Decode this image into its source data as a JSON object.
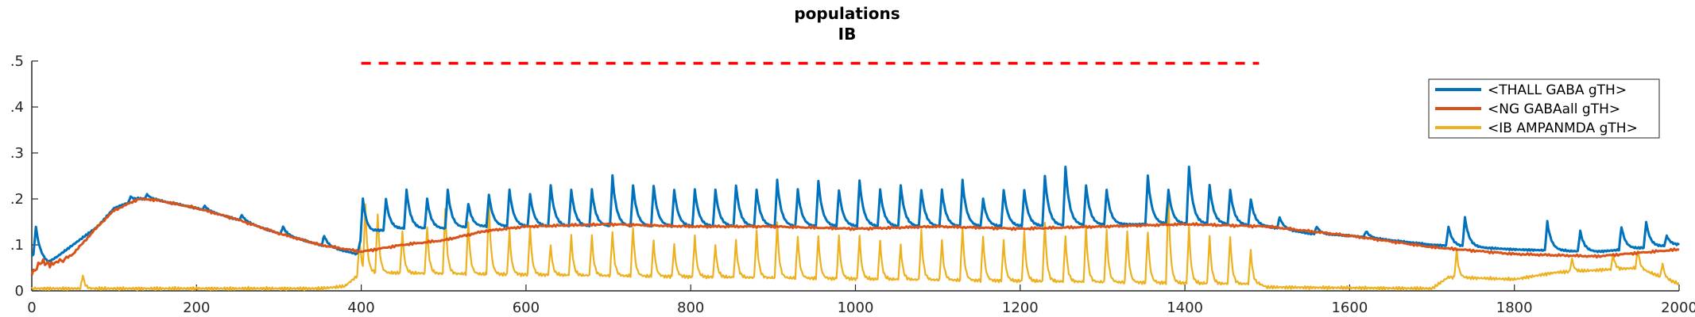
{
  "chart_data": {
    "type": "line",
    "title": "populations",
    "subtitle": "IB",
    "xlabel": "",
    "ylabel": "",
    "xlim": [
      0,
      2000
    ],
    "ylim": [
      0,
      0.5
    ],
    "x_ticks": [
      "0",
      "200",
      "400",
      "600",
      "800",
      "1000",
      "1200",
      "1400",
      "1600",
      "1800",
      "2000"
    ],
    "y_ticks": [
      ".5",
      ".4",
      ".3",
      ".2",
      ".1",
      "0"
    ],
    "grid": false,
    "legend_position": "top-right",
    "stimulus_marker": {
      "style": "dashed",
      "color": "#ff0000",
      "x_start": 400,
      "x_end": 1490,
      "y": 0.495
    },
    "series": [
      {
        "name": "<THALL GABA gTH>",
        "color": "#0072bd",
        "baseline": [
          [
            0,
            0.08
          ],
          [
            20,
            0.06
          ],
          [
            50,
            0.1
          ],
          [
            80,
            0.14
          ],
          [
            100,
            0.18
          ],
          [
            130,
            0.2
          ],
          [
            150,
            0.198
          ],
          [
            200,
            0.18
          ],
          [
            250,
            0.155
          ],
          [
            300,
            0.125
          ],
          [
            350,
            0.1
          ],
          [
            395,
            0.08
          ],
          [
            400,
            0.115
          ],
          [
            420,
            0.13
          ],
          [
            450,
            0.135
          ],
          [
            500,
            0.135
          ],
          [
            550,
            0.14
          ],
          [
            1200,
            0.14
          ],
          [
            1350,
            0.145
          ],
          [
            1450,
            0.145
          ],
          [
            1500,
            0.14
          ],
          [
            1550,
            0.125
          ],
          [
            1600,
            0.12
          ],
          [
            1650,
            0.11
          ],
          [
            1700,
            0.1
          ],
          [
            1800,
            0.09
          ],
          [
            1900,
            0.085
          ],
          [
            2000,
            0.1
          ]
        ],
        "peaks": [
          [
            5,
            0.14
          ],
          [
            60,
            0.1
          ],
          [
            120,
            0.205
          ],
          [
            140,
            0.21
          ],
          [
            175,
            0.19
          ],
          [
            210,
            0.185
          ],
          [
            255,
            0.165
          ],
          [
            305,
            0.14
          ],
          [
            355,
            0.12
          ],
          [
            402,
            0.2
          ],
          [
            430,
            0.2
          ],
          [
            455,
            0.22
          ],
          [
            480,
            0.2
          ],
          [
            505,
            0.22
          ],
          [
            530,
            0.19
          ],
          [
            555,
            0.21
          ],
          [
            580,
            0.22
          ],
          [
            605,
            0.21
          ],
          [
            630,
            0.23
          ],
          [
            655,
            0.22
          ],
          [
            680,
            0.22
          ],
          [
            705,
            0.25
          ],
          [
            730,
            0.23
          ],
          [
            755,
            0.23
          ],
          [
            780,
            0.22
          ],
          [
            805,
            0.22
          ],
          [
            830,
            0.22
          ],
          [
            855,
            0.23
          ],
          [
            880,
            0.22
          ],
          [
            905,
            0.24
          ],
          [
            930,
            0.22
          ],
          [
            955,
            0.24
          ],
          [
            980,
            0.22
          ],
          [
            1005,
            0.24
          ],
          [
            1030,
            0.22
          ],
          [
            1055,
            0.23
          ],
          [
            1080,
            0.22
          ],
          [
            1105,
            0.22
          ],
          [
            1130,
            0.24
          ],
          [
            1155,
            0.2
          ],
          [
            1180,
            0.22
          ],
          [
            1205,
            0.22
          ],
          [
            1230,
            0.25
          ],
          [
            1255,
            0.27
          ],
          [
            1280,
            0.23
          ],
          [
            1305,
            0.22
          ],
          [
            1355,
            0.25
          ],
          [
            1380,
            0.22
          ],
          [
            1405,
            0.27
          ],
          [
            1430,
            0.23
          ],
          [
            1455,
            0.22
          ],
          [
            1480,
            0.2
          ],
          [
            1515,
            0.16
          ],
          [
            1560,
            0.14
          ],
          [
            1620,
            0.13
          ],
          [
            1720,
            0.14
          ],
          [
            1740,
            0.16
          ],
          [
            1840,
            0.15
          ],
          [
            1880,
            0.13
          ],
          [
            1930,
            0.14
          ],
          [
            1960,
            0.15
          ],
          [
            1985,
            0.12
          ]
        ]
      },
      {
        "name": "<NG GABAall gTH>",
        "color": "#d95319",
        "points": [
          [
            0,
            0.04
          ],
          [
            10,
            0.06
          ],
          [
            30,
            0.06
          ],
          [
            50,
            0.08
          ],
          [
            80,
            0.14
          ],
          [
            100,
            0.175
          ],
          [
            130,
            0.2
          ],
          [
            150,
            0.198
          ],
          [
            200,
            0.18
          ],
          [
            250,
            0.155
          ],
          [
            300,
            0.125
          ],
          [
            350,
            0.1
          ],
          [
            400,
            0.085
          ],
          [
            450,
            0.1
          ],
          [
            500,
            0.11
          ],
          [
            550,
            0.13
          ],
          [
            600,
            0.14
          ],
          [
            700,
            0.145
          ],
          [
            800,
            0.14
          ],
          [
            900,
            0.14
          ],
          [
            1000,
            0.135
          ],
          [
            1100,
            0.14
          ],
          [
            1200,
            0.135
          ],
          [
            1300,
            0.14
          ],
          [
            1400,
            0.145
          ],
          [
            1500,
            0.14
          ],
          [
            1600,
            0.12
          ],
          [
            1700,
            0.095
          ],
          [
            1800,
            0.08
          ],
          [
            1900,
            0.075
          ],
          [
            2000,
            0.09
          ]
        ]
      },
      {
        "name": "<IB AMPANMDA gTH>",
        "color": "#edb120",
        "baseline": [
          [
            0,
            0.005
          ],
          [
            350,
            0.005
          ],
          [
            380,
            0.01
          ],
          [
            400,
            0.04
          ],
          [
            1490,
            0.015
          ],
          [
            1500,
            0.008
          ],
          [
            1700,
            0.005
          ],
          [
            1720,
            0.03
          ],
          [
            1800,
            0.025
          ],
          [
            1850,
            0.04
          ],
          [
            1950,
            0.05
          ],
          [
            2000,
            0.015
          ]
        ],
        "peaks": [
          [
            62,
            0.035
          ],
          [
            398,
            0.11
          ],
          [
            405,
            0.19
          ],
          [
            420,
            0.17
          ],
          [
            450,
            0.13
          ],
          [
            480,
            0.14
          ],
          [
            502,
            0.18
          ],
          [
            530,
            0.15
          ],
          [
            555,
            0.2
          ],
          [
            580,
            0.13
          ],
          [
            605,
            0.14
          ],
          [
            630,
            0.1
          ],
          [
            655,
            0.12
          ],
          [
            680,
            0.12
          ],
          [
            705,
            0.13
          ],
          [
            730,
            0.14
          ],
          [
            755,
            0.11
          ],
          [
            780,
            0.1
          ],
          [
            805,
            0.12
          ],
          [
            830,
            0.1
          ],
          [
            855,
            0.11
          ],
          [
            880,
            0.13
          ],
          [
            905,
            0.15
          ],
          [
            930,
            0.12
          ],
          [
            955,
            0.12
          ],
          [
            980,
            0.12
          ],
          [
            1005,
            0.12
          ],
          [
            1030,
            0.11
          ],
          [
            1055,
            0.1
          ],
          [
            1080,
            0.13
          ],
          [
            1105,
            0.11
          ],
          [
            1130,
            0.14
          ],
          [
            1155,
            0.12
          ],
          [
            1180,
            0.11
          ],
          [
            1205,
            0.13
          ],
          [
            1230,
            0.15
          ],
          [
            1255,
            0.12
          ],
          [
            1280,
            0.14
          ],
          [
            1305,
            0.13
          ],
          [
            1330,
            0.13
          ],
          [
            1355,
            0.13
          ],
          [
            1380,
            0.21
          ],
          [
            1405,
            0.14
          ],
          [
            1430,
            0.12
          ],
          [
            1455,
            0.12
          ],
          [
            1480,
            0.09
          ],
          [
            1730,
            0.09
          ],
          [
            1870,
            0.07
          ],
          [
            1920,
            0.08
          ],
          [
            1950,
            0.09
          ],
          [
            1980,
            0.06
          ]
        ]
      }
    ]
  }
}
